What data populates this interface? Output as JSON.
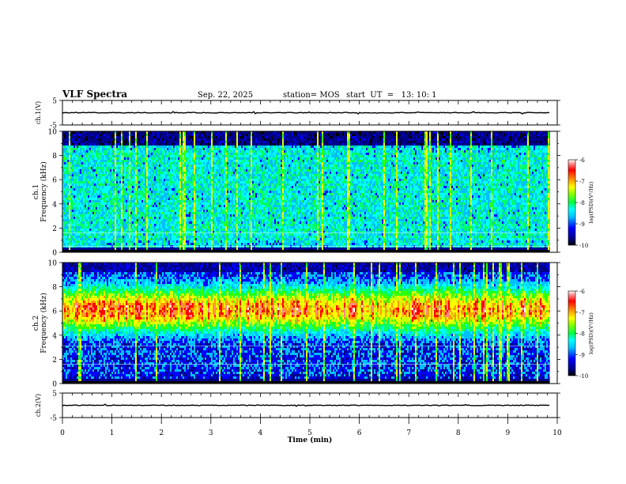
{
  "header": {
    "title": "VLF Spectra",
    "date": "Sep. 22, 2025",
    "station": "station= MOS",
    "start": "start  UT  =   13: 10: 1"
  },
  "chart_data": [
    {
      "type": "line",
      "name": "ch1-waveform",
      "ylabel": "ch.1(V)",
      "ylim": [
        -5,
        5
      ],
      "yticks": [
        "5",
        "-5"
      ],
      "xlim": [
        0,
        10
      ],
      "baseline": 0
    },
    {
      "type": "heatmap",
      "name": "ch1-spectrogram",
      "ylabel_lines": [
        "ch.1",
        "Frequency (kHz)"
      ],
      "ylim": [
        0,
        10
      ],
      "yticks": [
        "0",
        "2",
        "4",
        "6",
        "8",
        "10"
      ],
      "xlim": [
        0,
        10
      ],
      "colorbar": {
        "label": "log(PSD)(V²/Hz)",
        "range": [
          -10,
          -6
        ],
        "ticks": [
          "-6",
          "-7",
          "-8",
          "-9",
          "-10"
        ]
      },
      "data_end_min": 9.85
    },
    {
      "type": "heatmap",
      "name": "ch2-spectrogram",
      "ylabel_lines": [
        "ch.2",
        "Frequency (kHz)"
      ],
      "ylim": [
        0,
        10
      ],
      "yticks": [
        "0",
        "2",
        "4",
        "6",
        "8",
        "10"
      ],
      "xlim": [
        0,
        10
      ],
      "colorbar": {
        "label": "log(PSD)(V²/Hz)",
        "range": [
          -10,
          -6
        ],
        "ticks": [
          "-6",
          "-7",
          "-8",
          "-9",
          "-10"
        ]
      },
      "data_end_min": 9.85
    },
    {
      "type": "line",
      "name": "ch2-waveform",
      "ylabel": "ch.2(V)",
      "ylim": [
        -5,
        5
      ],
      "yticks": [
        "5",
        "-5"
      ],
      "xlim": [
        0,
        10
      ],
      "baseline": 0,
      "xlabel": "Time (min)",
      "xticks": [
        "0",
        "1",
        "2",
        "3",
        "4",
        "5",
        "6",
        "7",
        "8",
        "9",
        "10"
      ]
    }
  ],
  "colors": {
    "colormap": [
      "#000000",
      "#00008b",
      "#0000ff",
      "#00bfff",
      "#00ffff",
      "#00ff66",
      "#33ff00",
      "#ccff00",
      "#ffff00",
      "#ff9900",
      "#ff0000",
      "#ff8888",
      "#ffffff"
    ]
  }
}
